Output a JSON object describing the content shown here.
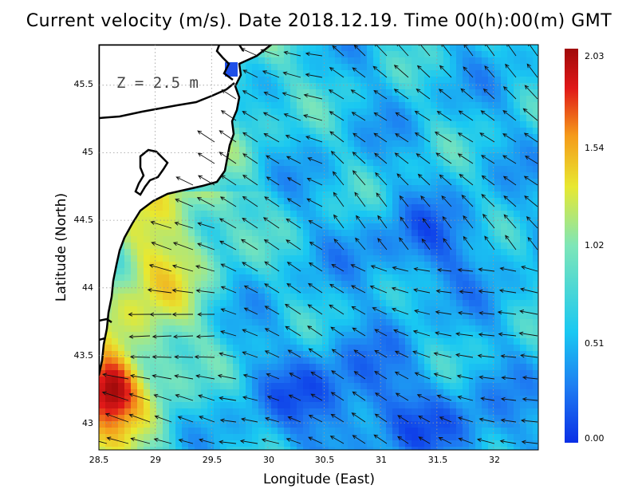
{
  "chart_data": {
    "type": "heatmap",
    "title": "Current velocity (m/s). Date 2018.12.19. Time 00(h):00(m) GMT",
    "annotation": "Z = 2.5 m",
    "xlabel": "Longitude (East)",
    "ylabel": "Latitude (North)",
    "xlim": [
      28.5,
      32.4
    ],
    "ylim": [
      42.8,
      45.8
    ],
    "x_ticks": [
      "28.5",
      "29",
      "29.5",
      "30",
      "30.5",
      "31",
      "31.5",
      "32"
    ],
    "y_ticks": [
      "43",
      "43.5",
      "44",
      "44.5",
      "45",
      "45.5"
    ],
    "grid": true,
    "colorbar": {
      "ticks": [
        "0.00",
        "0.51",
        "1.02",
        "1.54",
        "2.03"
      ],
      "min": 0.0,
      "max": 2.03,
      "colors": [
        "#0a2ee6",
        "#1e7cf2",
        "#19c8f2",
        "#7ee6b8",
        "#e8e830",
        "#f59a1a",
        "#e01818",
        "#a00a0a"
      ]
    },
    "land_color": "#ffffff",
    "coast_color": "#000000"
  }
}
